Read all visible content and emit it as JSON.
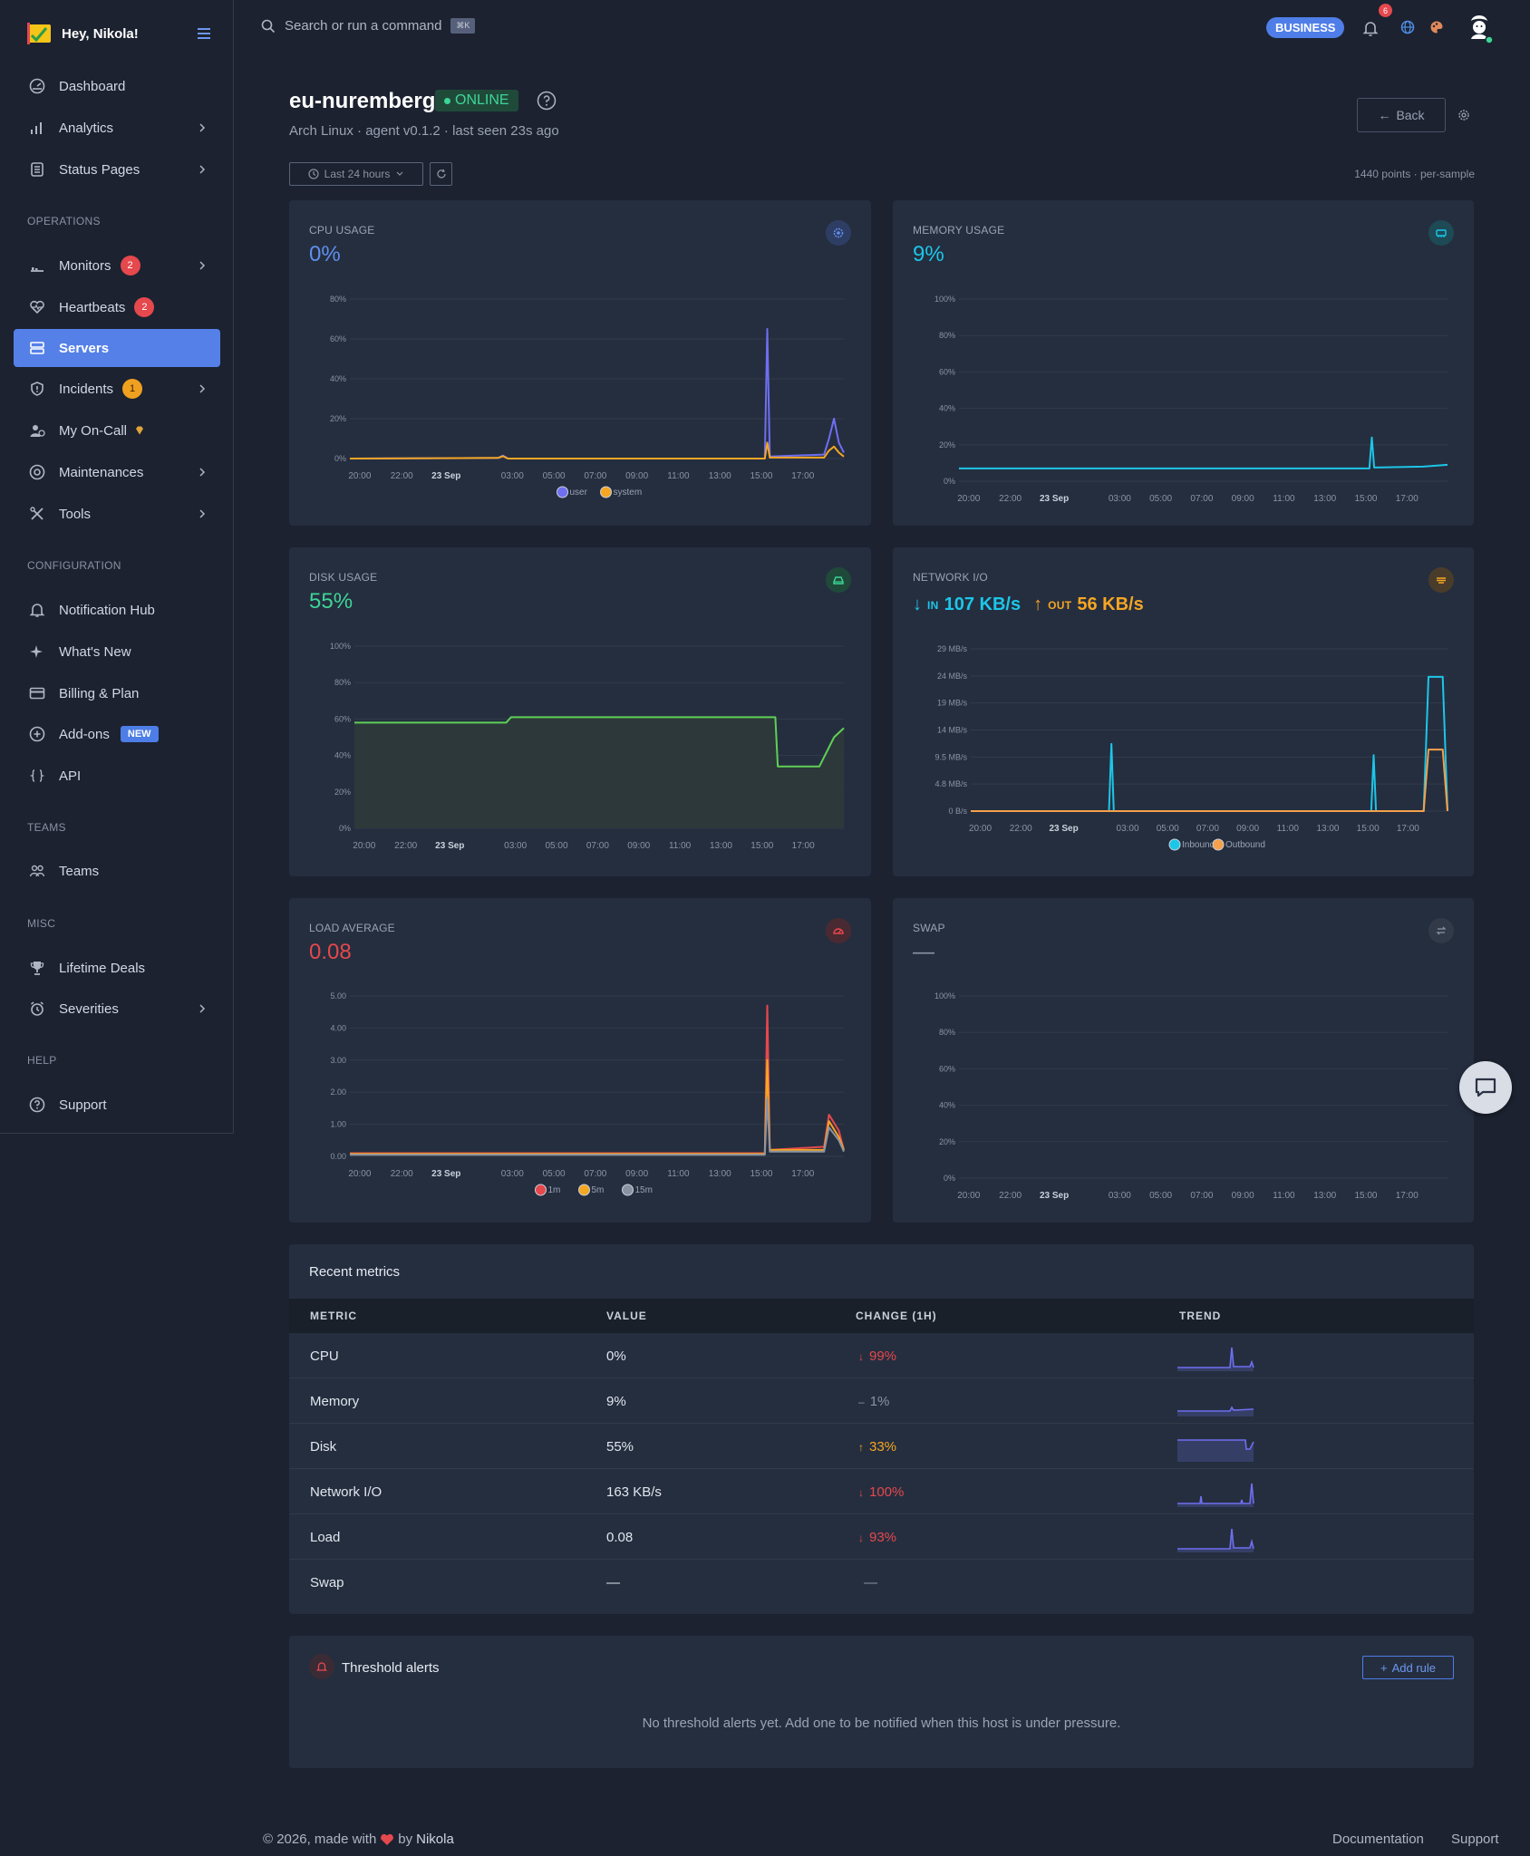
{
  "sidebar": {
    "greeting": "Hey, Nikola!",
    "items": [
      {
        "label": "Dashboard"
      },
      {
        "label": "Analytics"
      },
      {
        "label": "Status Pages"
      },
      {
        "label": "Monitors",
        "badge": "2"
      },
      {
        "label": "Heartbeats",
        "badge": "2"
      },
      {
        "label": "Servers"
      },
      {
        "label": "Incidents",
        "badge": "1"
      },
      {
        "label": "My On-Call"
      },
      {
        "label": "Maintenances"
      },
      {
        "label": "Tools"
      },
      {
        "label": "Notification Hub"
      },
      {
        "label": "What's New"
      },
      {
        "label": "Billing & Plan"
      },
      {
        "label": "Add-ons",
        "tag": "NEW"
      },
      {
        "label": "API"
      },
      {
        "label": "Teams"
      },
      {
        "label": "Lifetime Deals"
      },
      {
        "label": "Severities"
      },
      {
        "label": "Support"
      }
    ],
    "sections": {
      "operations": "OPERATIONS",
      "configuration": "CONFIGURATION",
      "teams": "TEAMS",
      "misc": "MISC",
      "help": "HELP"
    }
  },
  "topbar": {
    "search_placeholder": "Search or run a command",
    "shortcut": "⌘K",
    "plan": "BUSINESS",
    "notifications": "6"
  },
  "host": {
    "name": "eu-nuremberg",
    "status": "ONLINE",
    "meta": "Arch Linux · agent v0.1.2 · last seen 23s ago",
    "back": "Back",
    "range": "Last 24 hours",
    "points": "1440 points · per-sample"
  },
  "x_ticks": [
    "20:00",
    "22:00",
    "23 Sep",
    "03:00",
    "05:00",
    "07:00",
    "09:00",
    "11:00",
    "13:00",
    "15:00",
    "17:00"
  ],
  "cards": {
    "cpu": {
      "title": "CPU USAGE",
      "value": "0%"
    },
    "memory": {
      "title": "MEMORY USAGE",
      "value": "9%"
    },
    "disk": {
      "title": "DISK USAGE",
      "value": "55%"
    },
    "network": {
      "title": "NETWORK I/O",
      "in_label": "IN",
      "in_value": "107 KB/s",
      "out_label": "OUT",
      "out_value": "56 KB/s"
    },
    "load": {
      "title": "LOAD AVERAGE",
      "value": "0.08"
    },
    "swap": {
      "title": "SWAP",
      "value": "—"
    }
  },
  "chart_data": [
    {
      "type": "line",
      "id": "cpu",
      "ylabel": "",
      "yticks": [
        "0%",
        "20%",
        "40%",
        "60%",
        "80%"
      ],
      "ylim": [
        0,
        80
      ],
      "series": [
        {
          "name": "user",
          "color": "#6f6ff0",
          "points": [
            [
              0,
              0
            ],
            [
              0.3,
              0.3
            ],
            [
              0.31,
              1.5
            ],
            [
              0.32,
              0
            ],
            [
              0.84,
              0
            ],
            [
              0.845,
              65
            ],
            [
              0.85,
              1
            ],
            [
              0.96,
              2
            ],
            [
              0.97,
              10
            ],
            [
              0.98,
              20
            ],
            [
              0.99,
              8
            ],
            [
              1,
              3
            ]
          ]
        },
        {
          "name": "system",
          "color": "#f5a623",
          "points": [
            [
              0,
              0
            ],
            [
              0.3,
              0.3
            ],
            [
              0.31,
              1.2
            ],
            [
              0.32,
              0
            ],
            [
              0.84,
              0
            ],
            [
              0.845,
              8
            ],
            [
              0.85,
              0.5
            ],
            [
              0.96,
              0.5
            ],
            [
              0.97,
              4
            ],
            [
              0.98,
              6
            ],
            [
              0.99,
              3
            ],
            [
              1,
              1
            ]
          ]
        }
      ]
    },
    {
      "type": "line",
      "id": "memory",
      "yticks": [
        "0%",
        "20%",
        "40%",
        "60%",
        "80%",
        "100%"
      ],
      "ylim": [
        0,
        100
      ],
      "series": [
        {
          "name": "",
          "color": "#1cc6e8",
          "points": [
            [
              0,
              7
            ],
            [
              0.84,
              7
            ],
            [
              0.845,
              24
            ],
            [
              0.85,
              7.5
            ],
            [
              0.95,
              8
            ],
            [
              1,
              9
            ]
          ]
        }
      ]
    },
    {
      "type": "area",
      "id": "disk",
      "yticks": [
        "0%",
        "20%",
        "40%",
        "60%",
        "80%",
        "100%"
      ],
      "ylim": [
        0,
        100
      ],
      "series": [
        {
          "name": "",
          "color": "#5ed055",
          "points": [
            [
              0,
              58
            ],
            [
              0.31,
              58
            ],
            [
              0.32,
              61
            ],
            [
              0.84,
              61
            ],
            [
              0.86,
              61
            ],
            [
              0.865,
              34
            ],
            [
              0.95,
              34
            ],
            [
              0.98,
              50
            ],
            [
              1,
              55
            ]
          ]
        }
      ]
    },
    {
      "type": "line",
      "id": "network",
      "yticks": [
        "0 B/s",
        "4.8 MB/s",
        "9.5 MB/s",
        "14 MB/s",
        "19 MB/s",
        "24 MB/s",
        "29 MB/s"
      ],
      "ylim": [
        0,
        29
      ],
      "series": [
        {
          "name": "Inbound",
          "color": "#1cc6e8",
          "points": [
            [
              0,
              0
            ],
            [
              0.29,
              0
            ],
            [
              0.295,
              12
            ],
            [
              0.3,
              0
            ],
            [
              0.84,
              0
            ],
            [
              0.845,
              10
            ],
            [
              0.85,
              0
            ],
            [
              0.95,
              0
            ],
            [
              0.96,
              24
            ],
            [
              0.99,
              24
            ],
            [
              1,
              0
            ]
          ]
        },
        {
          "name": "Outbound",
          "color": "#f5a04b",
          "points": [
            [
              0,
              0
            ],
            [
              0.84,
              0
            ],
            [
              0.95,
              0
            ],
            [
              0.96,
              11
            ],
            [
              0.99,
              11
            ],
            [
              1,
              0
            ]
          ]
        }
      ]
    },
    {
      "type": "line",
      "id": "load",
      "yticks": [
        "0.00",
        "1.00",
        "2.00",
        "3.00",
        "4.00",
        "5.00"
      ],
      "ylim": [
        0,
        5
      ],
      "series": [
        {
          "name": "1m",
          "color": "#e5484d",
          "points": [
            [
              0,
              0.1
            ],
            [
              0.84,
              0.1
            ],
            [
              0.845,
              4.7
            ],
            [
              0.85,
              0.2
            ],
            [
              0.96,
              0.3
            ],
            [
              0.97,
              1.3
            ],
            [
              0.99,
              0.8
            ],
            [
              1,
              0.2
            ]
          ]
        },
        {
          "name": "5m",
          "color": "#f5a623",
          "points": [
            [
              0,
              0.08
            ],
            [
              0.84,
              0.08
            ],
            [
              0.845,
              3
            ],
            [
              0.85,
              0.2
            ],
            [
              0.96,
              0.2
            ],
            [
              0.97,
              1.1
            ],
            [
              0.99,
              0.6
            ],
            [
              1,
              0.2
            ]
          ]
        },
        {
          "name": "15m",
          "color": "#8a93a3",
          "points": [
            [
              0,
              0.05
            ],
            [
              0.84,
              0.05
            ],
            [
              0.845,
              1.8
            ],
            [
              0.85,
              0.15
            ],
            [
              0.96,
              0.15
            ],
            [
              0.97,
              0.9
            ],
            [
              0.99,
              0.5
            ],
            [
              1,
              0.15
            ]
          ]
        }
      ]
    },
    {
      "type": "line",
      "id": "swap",
      "yticks": [
        "0%",
        "20%",
        "40%",
        "60%",
        "80%",
        "100%"
      ],
      "ylim": [
        0,
        100
      ],
      "series": []
    }
  ],
  "recent": {
    "title": "Recent metrics",
    "headers": [
      "METRIC",
      "VALUE",
      "CHANGE (1H)",
      "TREND"
    ],
    "rows": [
      {
        "metric": "CPU",
        "value": "0%",
        "arrow": "↓",
        "change": "99%",
        "color": "#e5484d"
      },
      {
        "metric": "Memory",
        "value": "9%",
        "arrow": "–",
        "change": "1%",
        "color": "#8a93a3"
      },
      {
        "metric": "Disk",
        "value": "55%",
        "arrow": "↑",
        "change": "33%",
        "color": "#f5a623"
      },
      {
        "metric": "Network I/O",
        "value": "163 KB/s",
        "arrow": "↓",
        "change": "100%",
        "color": "#e5484d"
      },
      {
        "metric": "Load",
        "value": "0.08",
        "arrow": "↓",
        "change": "93%",
        "color": "#e5484d"
      },
      {
        "metric": "Swap",
        "value": "—",
        "arrow": "",
        "change": "—",
        "color": "#8a93a3"
      }
    ]
  },
  "alerts": {
    "title": "Threshold alerts",
    "add": "Add rule",
    "empty": "No threshold alerts yet. Add one to be notified when this host is under pressure."
  },
  "footer": {
    "copy": "© 2026, made with",
    "by": "by",
    "author": "Nikola",
    "links": [
      "Documentation",
      "Support"
    ]
  }
}
